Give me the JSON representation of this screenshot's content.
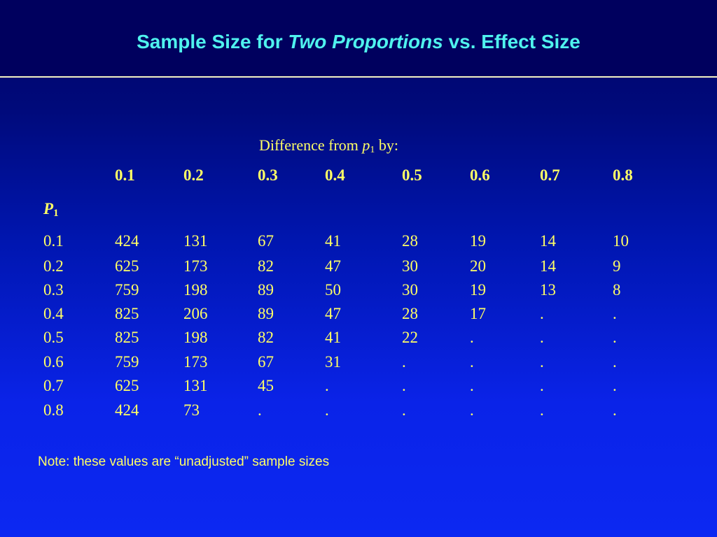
{
  "slide": {
    "title_pre": "Sample Size for ",
    "title_em": "Two Proportions",
    "title_post": " vs. Effect Size"
  },
  "table": {
    "caption_pre": "Difference from ",
    "caption_var": "p",
    "caption_sub": "1",
    "caption_post": " by:",
    "row_axis_var": "P",
    "row_axis_sub": "1",
    "col_headers": [
      "0.1",
      "0.2",
      "0.3",
      "0.4",
      "0.5",
      "0.6",
      "0.7",
      "0.8"
    ],
    "rows": [
      {
        "p1": "0.1",
        "values": [
          "424",
          "131",
          "67",
          "41",
          "28",
          "19",
          "14",
          "10"
        ]
      },
      {
        "p1": "0.2",
        "values": [
          "625",
          "173",
          "82",
          "47",
          "30",
          "20",
          "14",
          "9"
        ]
      },
      {
        "p1": "0.3",
        "values": [
          "759",
          "198",
          "89",
          "50",
          "30",
          "19",
          "13",
          "8"
        ]
      },
      {
        "p1": "0.4",
        "values": [
          "825",
          "206",
          "89",
          "47",
          "28",
          "17",
          ".",
          "."
        ]
      },
      {
        "p1": "0.5",
        "values": [
          "825",
          "198",
          "82",
          "41",
          "22",
          ".",
          ".",
          "."
        ]
      },
      {
        "p1": "0.6",
        "values": [
          "759",
          "173",
          "67",
          "31",
          ".",
          ".",
          ".",
          "."
        ]
      },
      {
        "p1": "0.7",
        "values": [
          "625",
          "131",
          "45",
          ".",
          ".",
          ".",
          ".",
          "."
        ]
      },
      {
        "p1": "0.8",
        "values": [
          "424",
          "73",
          ".",
          ".",
          ".",
          ".",
          ".",
          "."
        ]
      }
    ]
  },
  "note": "Note: these values are “unadjusted” sample sizes"
}
